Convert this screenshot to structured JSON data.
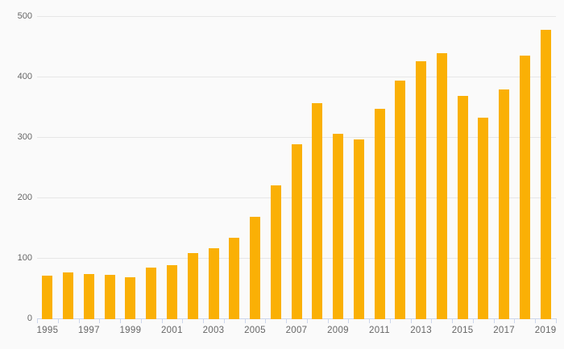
{
  "chart_data": {
    "type": "bar",
    "title": "",
    "categories": [
      1995,
      1996,
      1997,
      1998,
      1999,
      2000,
      2001,
      2002,
      2003,
      2004,
      2005,
      2006,
      2007,
      2008,
      2009,
      2010,
      2011,
      2012,
      2013,
      2014,
      2015,
      2016,
      2017,
      2018,
      2019
    ],
    "values": [
      72,
      77,
      75,
      73,
      69,
      86,
      90,
      109,
      118,
      135,
      170,
      222,
      289,
      358,
      307,
      297,
      348,
      395,
      427,
      440,
      369,
      333,
      380,
      436,
      479
    ],
    "x_tick_labels": [
      "1995",
      "1997",
      "1999",
      "2001",
      "2003",
      "2005",
      "2007",
      "2009",
      "2011",
      "2013",
      "2015",
      "2017",
      "2019"
    ],
    "y_ticks": [
      0,
      100,
      200,
      300,
      400,
      500
    ],
    "xlabel": "",
    "ylabel": "",
    "ylim": [
      0,
      500
    ],
    "grid": true,
    "legend": false
  },
  "colors": {
    "bar": "#FAB005",
    "background": "#FAFAFA",
    "gridline": "#E6E6E6",
    "axis_line": "#CCD6EB",
    "tick": "#CCD6EB",
    "label": "#666666"
  }
}
